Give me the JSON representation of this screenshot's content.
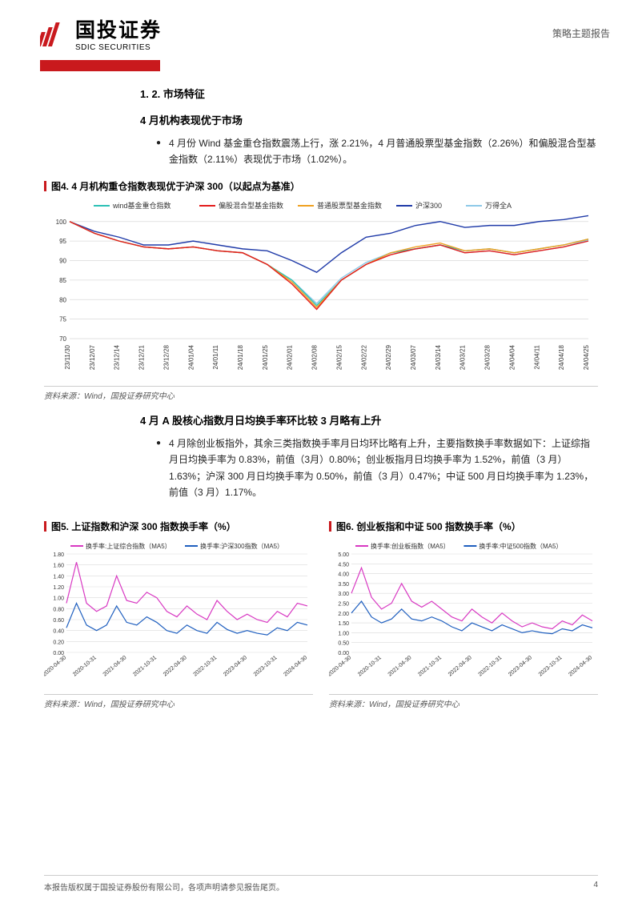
{
  "header": {
    "company_cn": "国投证券",
    "company_en": "SDIC SECURITIES",
    "report_type": "策略主题报告",
    "logo_color": "#c9191d"
  },
  "section": {
    "number": "1. 2. 市场特征",
    "subtitle_1": "4 月机构表现优于市场",
    "bullet_1": "4 月份 Wind 基金重仓指数震荡上行，涨 2.21%，4 月普通股票型基金指数（2.26%）和偏股混合型基金指数（2.11%）表现优于市场（1.02%）。",
    "subtitle_2": "4 月 A 股核心指数月日均换手率环比较 3 月略有上升",
    "bullet_2": "4 月除创业板指外，其余三类指数换手率月日均环比略有上升，主要指数换手率数据如下：上证综指月日均换手率为 0.83%，前值（3月）0.80%；创业板指月日均换手率为 1.52%，前值（3 月）1.63%；沪深 300 月日均换手率为 0.50%，前值（3 月）0.47%；中证 500 月日均换手率为 1.23%，前值（3 月）1.17%。"
  },
  "fig4": {
    "caption": "图4. 4 月机构重仓指数表现优于沪深 300（以起点为基准）",
    "source": "资料来源：Wind，国投证券研究中心",
    "type": "line",
    "legend": [
      {
        "label": "wind基金重仓指数",
        "color": "#2bc0b5"
      },
      {
        "label": "偏股混合型基金指数",
        "color": "#e31b1b"
      },
      {
        "label": "普通股票型基金指数",
        "color": "#f0a020"
      },
      {
        "label": "沪深300",
        "color": "#1f3aa8"
      },
      {
        "label": "万得全A",
        "color": "#8ec9e8"
      }
    ],
    "x_labels": [
      "23/11/30",
      "23/12/07",
      "23/12/14",
      "23/12/21",
      "23/12/28",
      "24/01/04",
      "24/01/11",
      "24/01/18",
      "24/01/25",
      "24/02/01",
      "24/02/08",
      "24/02/15",
      "24/02/22",
      "24/02/29",
      "24/03/07",
      "24/03/14",
      "24/03/21",
      "24/03/28",
      "24/04/04",
      "24/04/11",
      "24/04/18",
      "24/04/25"
    ],
    "y_ticks": [
      70,
      75,
      80,
      85,
      90,
      95,
      100
    ],
    "ylim": [
      70,
      102
    ],
    "series": {
      "wind": [
        100,
        97,
        95,
        93.5,
        93,
        93.5,
        92.5,
        92,
        89,
        85,
        78.5,
        85,
        89,
        92,
        93,
        94,
        92.5,
        93,
        92,
        93,
        94,
        95.5
      ],
      "mixed": [
        100,
        97,
        95,
        93.5,
        93,
        93.5,
        92.5,
        92,
        89,
        84,
        77.5,
        85,
        89,
        91.5,
        93,
        94,
        92,
        92.5,
        91.5,
        92.5,
        93.5,
        95
      ],
      "stock": [
        100,
        97,
        95,
        93.5,
        93,
        93.5,
        92.5,
        92,
        89,
        84.5,
        78,
        85,
        89,
        92,
        93.5,
        94.5,
        92.5,
        93,
        92,
        93,
        94,
        95.5
      ],
      "hs300": [
        100,
        97.5,
        96,
        94,
        94,
        95,
        94,
        93,
        92.5,
        90,
        87,
        92,
        96,
        97,
        99,
        100,
        98.5,
        99,
        99,
        100,
        100.5,
        101.5
      ],
      "wda": [
        100,
        97,
        95,
        93.5,
        93,
        93.5,
        92.5,
        92,
        89,
        85,
        79,
        85.5,
        89.5,
        92,
        93,
        94,
        92,
        92.5,
        91.5,
        92.5,
        93.5,
        95.3
      ]
    },
    "grid_color": "#d9d9d9",
    "tick_fontsize": 8,
    "legend_fontsize": 9
  },
  "fig5": {
    "caption": "图5. 上证指数和沪深 300 指数换手率（%）",
    "source": "资料来源：Wind，国投证券研究中心",
    "type": "line",
    "legend": [
      {
        "label": "换手率:上证综合指数（MA5）",
        "color": "#d838c2"
      },
      {
        "label": "换手率:沪深300指数（MA5）",
        "color": "#1f5fbf"
      }
    ],
    "x_labels": [
      "2020-04-30",
      "2020-10-31",
      "2021-04-30",
      "2021-10-31",
      "2022-04-30",
      "2022-10-31",
      "2023-04-30",
      "2023-10-31",
      "2024-04-30"
    ],
    "y_ticks": [
      0.0,
      0.2,
      0.4,
      0.6,
      0.8,
      1.0,
      1.2,
      1.4,
      1.6,
      1.8
    ],
    "ylim": [
      0,
      1.8
    ],
    "series": {
      "sh": [
        0.9,
        1.65,
        0.9,
        0.75,
        0.85,
        1.4,
        0.95,
        0.9,
        1.1,
        1.0,
        0.75,
        0.65,
        0.85,
        0.7,
        0.6,
        0.95,
        0.75,
        0.6,
        0.7,
        0.6,
        0.55,
        0.75,
        0.65,
        0.9,
        0.85
      ],
      "hs300": [
        0.45,
        0.9,
        0.5,
        0.4,
        0.5,
        0.85,
        0.55,
        0.5,
        0.65,
        0.55,
        0.4,
        0.35,
        0.5,
        0.4,
        0.35,
        0.55,
        0.42,
        0.35,
        0.4,
        0.35,
        0.32,
        0.45,
        0.4,
        0.55,
        0.5
      ]
    },
    "grid_color": "#d9d9d9",
    "tick_fontsize": 7,
    "legend_fontsize": 8
  },
  "fig6": {
    "caption": "图6. 创业板指和中证 500 指数换手率（%）",
    "source": "资料来源：Wind，国投证券研究中心",
    "type": "line",
    "legend": [
      {
        "label": "换手率:创业板指数（MA5）",
        "color": "#d838c2"
      },
      {
        "label": "换手率:中证500指数（MA5）",
        "color": "#1f5fbf"
      }
    ],
    "x_labels": [
      "2020-04-30",
      "2020-10-31",
      "2021-04-30",
      "2021-10-31",
      "2022-04-30",
      "2022-10-31",
      "2023-04-30",
      "2023-10-31",
      "2024-04-30"
    ],
    "y_ticks": [
      0.0,
      0.5,
      1.0,
      1.5,
      2.0,
      2.5,
      3.0,
      3.5,
      4.0,
      4.5,
      5.0
    ],
    "ylim": [
      0,
      5.0
    ],
    "series": {
      "cyb": [
        3.0,
        4.3,
        2.8,
        2.2,
        2.5,
        3.5,
        2.6,
        2.3,
        2.6,
        2.2,
        1.8,
        1.6,
        2.2,
        1.8,
        1.5,
        2.0,
        1.6,
        1.3,
        1.5,
        1.3,
        1.2,
        1.6,
        1.4,
        1.9,
        1.6
      ],
      "zz500": [
        2.0,
        2.6,
        1.8,
        1.5,
        1.7,
        2.2,
        1.7,
        1.6,
        1.8,
        1.6,
        1.3,
        1.1,
        1.5,
        1.3,
        1.1,
        1.4,
        1.2,
        1.0,
        1.1,
        1.0,
        0.95,
        1.2,
        1.1,
        1.4,
        1.25
      ]
    },
    "grid_color": "#d9d9d9",
    "tick_fontsize": 7,
    "legend_fontsize": 8
  },
  "footer": {
    "text": "本报告版权属于国投证券股份有限公司，各项声明请参见报告尾页。",
    "page": "4"
  }
}
